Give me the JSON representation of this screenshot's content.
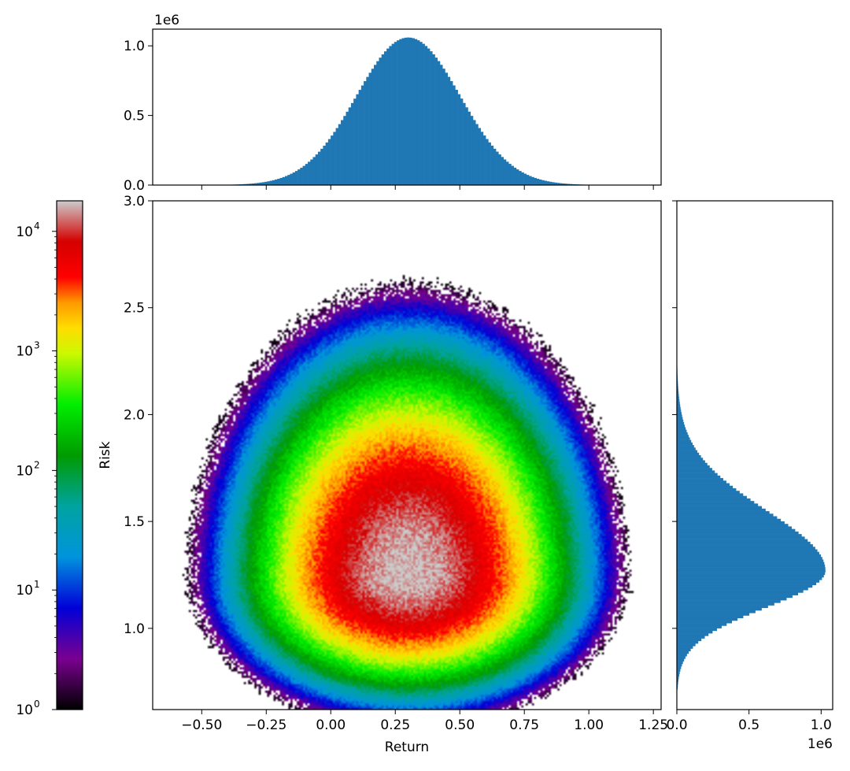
{
  "chart_data": [
    {
      "type": "heatmap",
      "name": "joint-2d-histogram",
      "title": "",
      "xlabel": "Return",
      "ylabel": "Risk",
      "xlim": [
        -0.69,
        1.28
      ],
      "ylim": [
        0.62,
        3.0
      ],
      "xticks": [
        -0.5,
        -0.25,
        0.0,
        0.25,
        0.5,
        0.75,
        1.0,
        1.25
      ],
      "xtick_labels": [
        "−0.50",
        "−0.25",
        "0.00",
        "0.25",
        "0.50",
        "0.75",
        "1.00",
        "1.25"
      ],
      "yticks": [
        1.0,
        1.5,
        2.0,
        2.5,
        3.0
      ],
      "ytick_labels": [
        "1.0",
        "1.5",
        "2.0",
        "2.5",
        "3.0"
      ],
      "density_peak": {
        "x": 0.3,
        "y": 1.25,
        "count": 18000
      },
      "color_scale": "log",
      "colormap": "nipy_spectral",
      "grid": false
    },
    {
      "type": "bar",
      "name": "return-marginal-histogram",
      "xlim": [
        -0.69,
        1.28
      ],
      "ylim": [
        0,
        1.12
      ],
      "distribution": "normal",
      "mean": 0.3,
      "std": 0.2,
      "peak": 1.06,
      "yticks": [
        0.0,
        0.5,
        1.0
      ],
      "ytick_labels": [
        "0.0",
        "0.5",
        "1.0"
      ],
      "offset_label": "1e6",
      "color": "#1f77b4"
    },
    {
      "type": "bar",
      "orientation": "horizontal",
      "name": "risk-marginal-histogram",
      "xlim": [
        0,
        1.08
      ],
      "ylim": [
        0.62,
        3.0
      ],
      "distribution": "skewed-right",
      "mode": 1.27,
      "peak": 1.03,
      "xticks": [
        0.0,
        0.5,
        1.0
      ],
      "xtick_labels": [
        "0.0",
        "0.5",
        "1.0"
      ],
      "offset_label": "1e6",
      "color": "#1f77b4"
    },
    {
      "type": "colorbar",
      "name": "count-colorbar",
      "scale": "log",
      "range": [
        1,
        18000
      ],
      "ticks": [
        1,
        10,
        100,
        1000,
        10000
      ],
      "tick_labels": [
        {
          "base": "10",
          "exp": "0"
        },
        {
          "base": "10",
          "exp": "1"
        },
        {
          "base": "10",
          "exp": "2"
        },
        {
          "base": "10",
          "exp": "3"
        },
        {
          "base": "10",
          "exp": "4"
        }
      ],
      "stops": [
        {
          "t": 0.0,
          "c": "#000000"
        },
        {
          "t": 0.1,
          "c": "#7a0090"
        },
        {
          "t": 0.2,
          "c": "#0000d8"
        },
        {
          "t": 0.3,
          "c": "#0094dd"
        },
        {
          "t": 0.4,
          "c": "#00a3a0"
        },
        {
          "t": 0.5,
          "c": "#009b00"
        },
        {
          "t": 0.6,
          "c": "#00ee00"
        },
        {
          "t": 0.7,
          "c": "#ccf800"
        },
        {
          "t": 0.75,
          "c": "#ffdd00"
        },
        {
          "t": 0.8,
          "c": "#ff9900"
        },
        {
          "t": 0.85,
          "c": "#ff0000"
        },
        {
          "t": 0.92,
          "c": "#d40000"
        },
        {
          "t": 1.0,
          "c": "#cccccc"
        }
      ]
    }
  ]
}
